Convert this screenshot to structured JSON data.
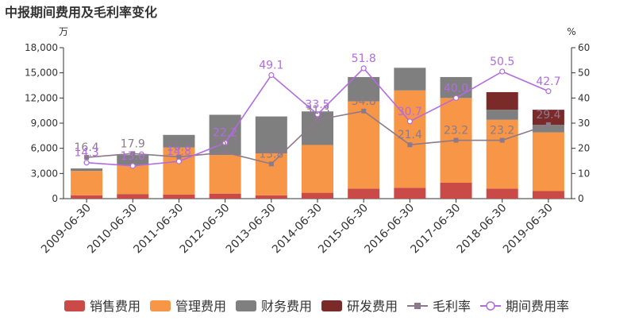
{
  "chart_data": {
    "type": "bar+line",
    "title": "中报期间费用及毛利率变化",
    "left_unit": "万",
    "right_unit": "%",
    "categories": [
      "2009-06-30",
      "2010-06-30",
      "2011-06-30",
      "2012-06-30",
      "2013-06-30",
      "2014-06-30",
      "2015-06-30",
      "2016-06-30",
      "2017-06-30",
      "2018-06-30",
      "2019-06-30"
    ],
    "left_axis": {
      "min": 0,
      "max": 18000,
      "ticks": [
        0,
        3000,
        6000,
        9000,
        12000,
        15000,
        18000
      ],
      "tick_labels": [
        "0",
        "3,000",
        "6,000",
        "9,000",
        "12,000",
        "15,000",
        "18,000"
      ]
    },
    "right_axis": {
      "min": 0,
      "max": 60,
      "ticks": [
        0,
        10,
        20,
        30,
        40,
        50,
        60
      ],
      "tick_labels": [
        "0",
        "10",
        "20",
        "30",
        "40",
        "50",
        "60"
      ]
    },
    "bar_series": [
      {
        "name": "销售费用",
        "color": "#c94a47",
        "values": [
          400,
          550,
          500,
          600,
          400,
          700,
          1200,
          1300,
          1900,
          1200,
          900
        ]
      },
      {
        "name": "管理费用",
        "color": "#f79646",
        "values": [
          2900,
          3450,
          5600,
          4600,
          5000,
          5700,
          10400,
          11600,
          10100,
          8200,
          7000
        ]
      },
      {
        "name": "财务费用",
        "color": "#7f7f7f",
        "values": [
          300,
          1200,
          1500,
          4800,
          4400,
          4000,
          2900,
          2700,
          2500,
          1200,
          900
        ]
      },
      {
        "name": "研发费用",
        "color": "#7b2a2a",
        "values": [
          0,
          0,
          0,
          0,
          0,
          0,
          0,
          0,
          0,
          2100,
          1800
        ]
      }
    ],
    "line_series": [
      {
        "name": "毛利率",
        "color": "#8c7a8c",
        "marker": "square",
        "values": [
          16.4,
          17.9,
          16.6,
          18.4,
          13.8,
          31.3,
          34.8,
          21.4,
          23.2,
          23.2,
          29.4
        ],
        "labels": [
          "16.4",
          "17.9",
          "16.6",
          "18.4",
          "13.8",
          "31.3",
          "34.8",
          "21.4",
          "23.2",
          "23.2",
          "29.4"
        ]
      },
      {
        "name": "期间费用率",
        "color": "#b36be0",
        "marker": "circle",
        "values": [
          14.3,
          13.0,
          14.8,
          22.2,
          49.1,
          33.5,
          51.8,
          30.7,
          40.0,
          50.5,
          42.7
        ],
        "labels": [
          "14.3",
          "13.0",
          "14.8",
          "22.2",
          "49.1",
          "33.5",
          "51.8",
          "30.7",
          "40.0",
          "50.5",
          "42.7"
        ]
      }
    ],
    "legend_placement": "bottom",
    "grid": false
  }
}
